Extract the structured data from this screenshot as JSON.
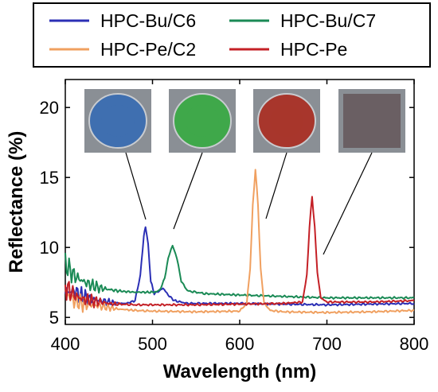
{
  "chart_data": {
    "type": "line",
    "xlabel": "Wavelength (nm)",
    "ylabel": "Reflectance (%)",
    "xlim": [
      400,
      800
    ],
    "ylim": [
      4.5,
      22
    ],
    "x_ticks": [
      400,
      500,
      600,
      700,
      800
    ],
    "y_ticks": [
      5,
      10,
      15,
      20
    ],
    "x_tick_labels": [
      "400",
      "500",
      "600",
      "700",
      "800"
    ],
    "y_tick_labels": [
      "5",
      "10",
      "15",
      "20"
    ],
    "grid": false,
    "legend_position": "top",
    "series": [
      {
        "name": "HPC-Bu/C6",
        "color": "#2b2fb5",
        "photo_color": "#3f6fb0",
        "peak_x": 492,
        "peak_y": 11.5,
        "points": [
          [
            400,
            6.8
          ],
          [
            410,
            6.9
          ],
          [
            420,
            6.5
          ],
          [
            430,
            6.3
          ],
          [
            440,
            6.2
          ],
          [
            450,
            6.1
          ],
          [
            460,
            6.0
          ],
          [
            470,
            6.0
          ],
          [
            480,
            6.2
          ],
          [
            486,
            8.0
          ],
          [
            490,
            10.8
          ],
          [
            492,
            11.5
          ],
          [
            495,
            10.2
          ],
          [
            498,
            7.6
          ],
          [
            502,
            6.7
          ],
          [
            508,
            6.9
          ],
          [
            512,
            7.1
          ],
          [
            518,
            6.6
          ],
          [
            525,
            6.2
          ],
          [
            540,
            6.0
          ],
          [
            560,
            6.0
          ],
          [
            600,
            6.0
          ],
          [
            650,
            5.95
          ],
          [
            700,
            5.9
          ],
          [
            750,
            5.95
          ],
          [
            800,
            6.0
          ]
        ]
      },
      {
        "name": "HPC-Bu/C7",
        "color": "#1a8a55",
        "photo_color": "#3fa84a",
        "peak_x": 523,
        "peak_y": 10.2,
        "points": [
          [
            400,
            8.8
          ],
          [
            410,
            8.0
          ],
          [
            420,
            7.6
          ],
          [
            430,
            7.3
          ],
          [
            440,
            7.1
          ],
          [
            450,
            7.0
          ],
          [
            460,
            6.9
          ],
          [
            470,
            6.85
          ],
          [
            480,
            6.8
          ],
          [
            490,
            6.8
          ],
          [
            500,
            6.8
          ],
          [
            508,
            6.9
          ],
          [
            514,
            7.8
          ],
          [
            518,
            9.2
          ],
          [
            523,
            10.2
          ],
          [
            528,
            9.2
          ],
          [
            533,
            7.6
          ],
          [
            540,
            6.9
          ],
          [
            560,
            6.7
          ],
          [
            600,
            6.6
          ],
          [
            650,
            6.5
          ],
          [
            700,
            6.4
          ],
          [
            750,
            6.4
          ],
          [
            800,
            6.4
          ]
        ]
      },
      {
        "name": "HPC-Pe/C2",
        "color": "#f0a060",
        "photo_color": "#a8362c",
        "peak_x": 618,
        "peak_y": 15.6,
        "points": [
          [
            400,
            6.8
          ],
          [
            410,
            6.2
          ],
          [
            420,
            6.0
          ],
          [
            430,
            5.9
          ],
          [
            440,
            5.8
          ],
          [
            450,
            5.7
          ],
          [
            460,
            5.6
          ],
          [
            470,
            5.55
          ],
          [
            480,
            5.5
          ],
          [
            500,
            5.45
          ],
          [
            550,
            5.4
          ],
          [
            600,
            5.45
          ],
          [
            608,
            6.0
          ],
          [
            612,
            8.5
          ],
          [
            615,
            13.0
          ],
          [
            618,
            15.6
          ],
          [
            621,
            13.0
          ],
          [
            624,
            8.5
          ],
          [
            628,
            6.0
          ],
          [
            635,
            5.5
          ],
          [
            650,
            5.4
          ],
          [
            700,
            5.35
          ],
          [
            750,
            5.4
          ],
          [
            800,
            5.5
          ]
        ]
      },
      {
        "name": "HPC-Pe",
        "color": "#c42026",
        "photo_color": "#6a5f63",
        "peak_x": 683,
        "peak_y": 13.6,
        "points": [
          [
            400,
            7.2
          ],
          [
            410,
            6.6
          ],
          [
            420,
            6.3
          ],
          [
            430,
            6.2
          ],
          [
            440,
            6.1
          ],
          [
            450,
            6.0
          ],
          [
            460,
            5.95
          ],
          [
            480,
            5.9
          ],
          [
            500,
            5.9
          ],
          [
            550,
            5.9
          ],
          [
            600,
            5.95
          ],
          [
            650,
            6.0
          ],
          [
            672,
            6.1
          ],
          [
            677,
            8.0
          ],
          [
            680,
            11.5
          ],
          [
            683,
            13.6
          ],
          [
            686,
            11.5
          ],
          [
            689,
            8.2
          ],
          [
            693,
            6.4
          ],
          [
            700,
            6.1
          ],
          [
            750,
            6.1
          ],
          [
            800,
            6.2
          ]
        ]
      }
    ]
  }
}
